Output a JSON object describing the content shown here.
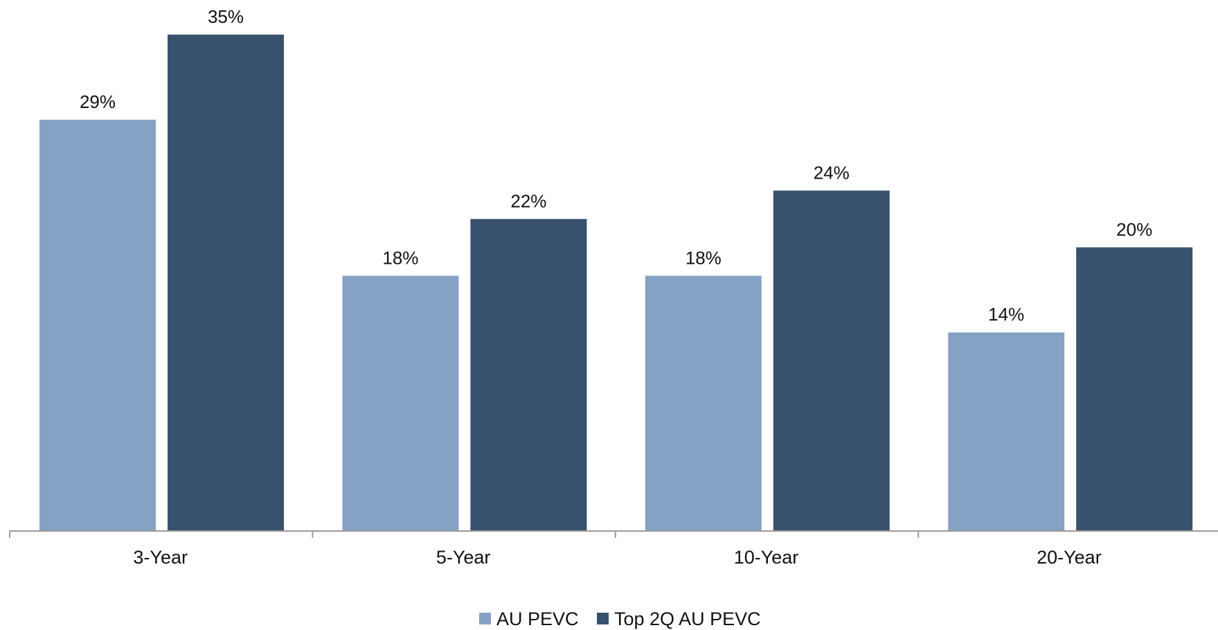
{
  "chart_data": {
    "type": "bar",
    "categories": [
      "3-Year",
      "5-Year",
      "10-Year",
      "20-Year"
    ],
    "series": [
      {
        "name": "AU PEVC",
        "color": "#85A2C4",
        "values": [
          29,
          18,
          18,
          14
        ],
        "labels": [
          "29%",
          "18%",
          "18%",
          "14%"
        ]
      },
      {
        "name": "Top 2Q AU PEVC",
        "color": "#38516E",
        "values": [
          35,
          22,
          24,
          20
        ],
        "labels": [
          "35%",
          "22%",
          "24%",
          "20%"
        ]
      }
    ],
    "value_unit": "%",
    "ylim": [
      0,
      35
    ],
    "grid": false,
    "legend_position": "bottom-center",
    "axis_color": "#999999"
  }
}
